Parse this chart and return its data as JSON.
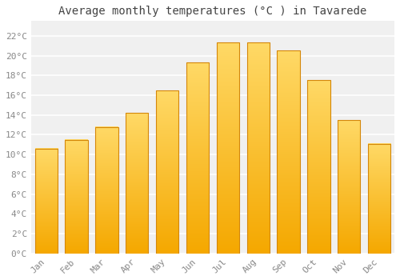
{
  "title": "Average monthly temperatures (°C ) in Tavarede",
  "months": [
    "Jan",
    "Feb",
    "Mar",
    "Apr",
    "May",
    "Jun",
    "Jul",
    "Aug",
    "Sep",
    "Oct",
    "Nov",
    "Dec"
  ],
  "temperatures": [
    10.6,
    11.5,
    12.8,
    14.2,
    16.5,
    19.3,
    21.3,
    21.3,
    20.5,
    17.5,
    13.5,
    11.1
  ],
  "bar_color_bottom": "#F5A800",
  "bar_color_top": "#FFD966",
  "bar_edge_color": "#D4870A",
  "background_color": "#FFFFFF",
  "plot_bg_color": "#F0F0F0",
  "grid_color": "#FFFFFF",
  "ytick_labels": [
    "0°C",
    "2°C",
    "4°C",
    "6°C",
    "8°C",
    "10°C",
    "12°C",
    "14°C",
    "16°C",
    "18°C",
    "20°C",
    "22°C"
  ],
  "ytick_values": [
    0,
    2,
    4,
    6,
    8,
    10,
    12,
    14,
    16,
    18,
    20,
    22
  ],
  "ylim": [
    0,
    23.5
  ],
  "title_fontsize": 10,
  "tick_fontsize": 8,
  "title_color": "#444444",
  "tick_color": "#888888",
  "bar_width": 0.75
}
